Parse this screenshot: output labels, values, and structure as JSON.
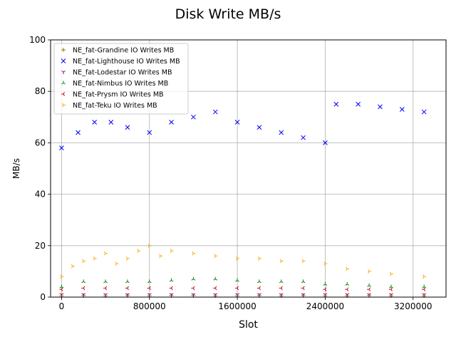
{
  "chart_data": {
    "type": "scatter",
    "title": "Disk Write MB/s",
    "xlabel": "Slot",
    "ylabel": "MB/s",
    "xlim": [
      -100000,
      3500000
    ],
    "ylim": [
      0,
      100
    ],
    "xticks": [
      0,
      800000,
      1600000,
      2400000,
      3200000
    ],
    "xtick_labels": [
      "0",
      "800000",
      "1600000",
      "2400000",
      "3200000"
    ],
    "yticks": [
      0,
      20,
      40,
      60,
      80,
      100
    ],
    "ytick_labels": [
      "0",
      "20",
      "40",
      "60",
      "80",
      "100"
    ],
    "grid": true,
    "legend_position": "upper-left",
    "series": [
      {
        "name": "NE_fat-Grandine IO Writes MB",
        "color": "#808000",
        "marker": "plus",
        "x": [
          0,
          200000,
          400000,
          600000,
          800000,
          1000000,
          1200000,
          1400000,
          1600000,
          1800000,
          2000000,
          2200000,
          2400000,
          2600000,
          2800000,
          3000000,
          3300000
        ],
        "y": [
          0.5,
          0.6,
          0.5,
          0.6,
          0.5,
          0.6,
          0.6,
          0.5,
          0.5,
          0.6,
          0.5,
          0.6,
          0.5,
          0.5,
          0.6,
          0.5,
          0.5
        ]
      },
      {
        "name": "NE_fat-Lighthouse IO Writes MB",
        "color": "#0000ff",
        "marker": "x",
        "x": [
          0,
          150000,
          300000,
          450000,
          600000,
          800000,
          1000000,
          1200000,
          1400000,
          1600000,
          1800000,
          2000000,
          2200000,
          2400000,
          2500000,
          2700000,
          2900000,
          3100000,
          3300000
        ],
        "y": [
          58,
          64,
          68,
          68,
          66,
          64,
          68,
          70,
          72,
          68,
          66,
          64,
          62,
          60,
          75,
          75,
          74,
          73,
          72
        ]
      },
      {
        "name": "NE_fat-Lodestar IO Writes MB",
        "color": "#800080",
        "marker": "tri_down",
        "x": [
          0,
          200000,
          400000,
          600000,
          800000,
          1000000,
          1200000,
          1400000,
          1600000,
          1800000,
          2000000,
          2200000,
          2400000,
          2600000,
          2800000,
          3000000,
          3300000
        ],
        "y": [
          1,
          1,
          1,
          1,
          1,
          1,
          1,
          1,
          1,
          1,
          1,
          1,
          1,
          1,
          1,
          1,
          1
        ]
      },
      {
        "name": "NE_fat-Nimbus IO Writes MB",
        "color": "#008000",
        "marker": "tri_up",
        "x": [
          0,
          200000,
          400000,
          600000,
          800000,
          1000000,
          1200000,
          1400000,
          1600000,
          1800000,
          2000000,
          2200000,
          2400000,
          2600000,
          2800000,
          3000000,
          3300000
        ],
        "y": [
          4,
          6,
          6,
          6,
          6,
          6.5,
          7,
          7,
          6.5,
          6,
          6,
          6,
          5,
          5,
          4.5,
          4,
          4
        ]
      },
      {
        "name": "NE_fat-Prysm IO Writes MB",
        "color": "#cc0000",
        "marker": "tri_left",
        "x": [
          0,
          200000,
          400000,
          600000,
          800000,
          1000000,
          1200000,
          1400000,
          1600000,
          1800000,
          2000000,
          2200000,
          2400000,
          2600000,
          2800000,
          3000000,
          3300000
        ],
        "y": [
          3,
          3.5,
          3.5,
          3.5,
          3.5,
          3.5,
          3.5,
          3.5,
          3.5,
          3.5,
          3.5,
          3.5,
          3,
          3,
          3,
          3,
          3
        ]
      },
      {
        "name": "NE_fat-Teku IO Writes MB",
        "color": "#ffa500",
        "marker": "tri_right",
        "x": [
          0,
          100000,
          200000,
          300000,
          400000,
          500000,
          600000,
          700000,
          800000,
          900000,
          1000000,
          1200000,
          1400000,
          1600000,
          1800000,
          2000000,
          2200000,
          2400000,
          2600000,
          2800000,
          3000000,
          3300000
        ],
        "y": [
          8,
          12,
          14,
          15,
          17,
          13,
          15,
          18,
          20,
          16,
          18,
          17,
          16,
          15,
          15,
          14,
          14,
          13,
          11,
          10,
          9,
          8
        ]
      }
    ]
  }
}
